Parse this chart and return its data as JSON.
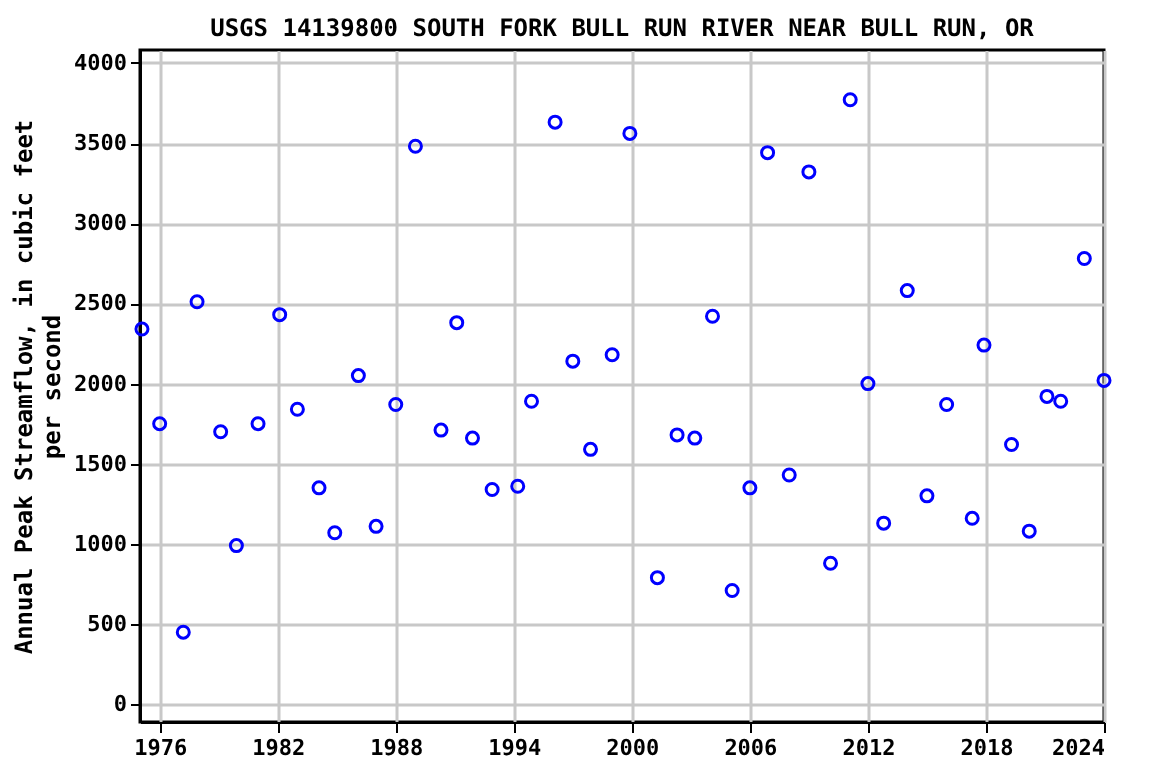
{
  "chart_data": {
    "type": "scatter",
    "title": "USGS 14139800 SOUTH FORK BULL RUN RIVER NEAR BULL RUN, OR",
    "ylabel": "Annual Peak Streamflow, in cubic feet per second",
    "x": [
      1975.1,
      1976.0,
      1977.2,
      1977.9,
      1979.1,
      1979.9,
      1981.0,
      1982.1,
      1983.0,
      1984.1,
      1984.9,
      1986.1,
      1987.0,
      1988.0,
      1989.0,
      1990.3,
      1991.1,
      1991.9,
      1992.9,
      1994.2,
      1994.9,
      1996.1,
      1997.0,
      1997.9,
      1999.0,
      1999.9,
      2001.3,
      2002.3,
      2003.2,
      2004.1,
      2005.1,
      2006.0,
      2006.9,
      2008.0,
      2009.0,
      2010.1,
      2011.1,
      2012.0,
      2012.8,
      2014.0,
      2015.0,
      2016.0,
      2017.3,
      2017.9,
      2019.3,
      2020.2,
      2021.1,
      2021.8,
      2023.0,
      2024.0
    ],
    "series": [
      {
        "color": "#0000ff",
        "values": [
          2340,
          1750,
          450,
          2510,
          1700,
          990,
          1750,
          2430,
          1840,
          1350,
          1070,
          2050,
          1110,
          1870,
          3480,
          1710,
          2380,
          1660,
          1340,
          1360,
          1890,
          3630,
          2140,
          1590,
          2180,
          3560,
          790,
          1680,
          1660,
          2420,
          710,
          1350,
          3440,
          1430,
          3320,
          880,
          3770,
          2000,
          1130,
          2580,
          1300,
          1870,
          1160,
          2240,
          1620,
          1080,
          1920,
          1890,
          2780,
          2020
        ]
      }
    ],
    "xlim": [
      1975,
      2024
    ],
    "xticks": [
      1976,
      1982,
      1988,
      1994,
      2000,
      2006,
      2012,
      2018,
      2024
    ],
    "ylim": [
      -110,
      4080
    ],
    "yticks": [
      0,
      500,
      1000,
      1500,
      2000,
      2500,
      3000,
      3500,
      4000
    ],
    "grid": true,
    "marker": "circle"
  }
}
